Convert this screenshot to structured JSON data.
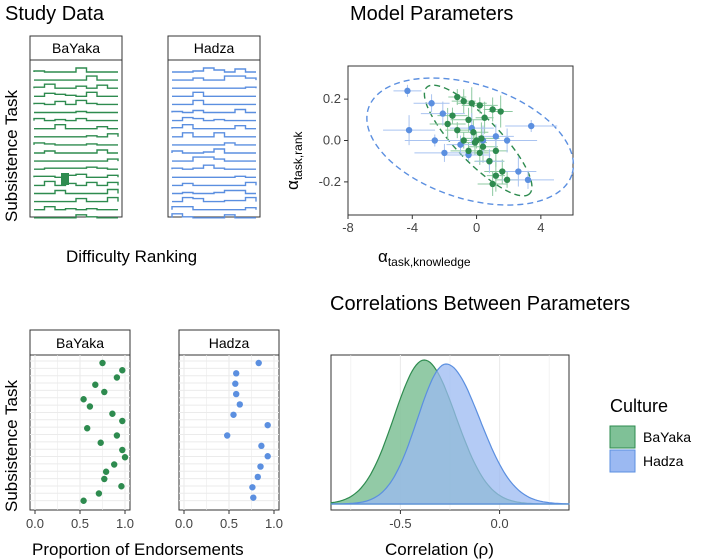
{
  "colors": {
    "bayaka": "#2e8b4f",
    "hadza": "#5b8fe0",
    "bayaka_fill": "#7fc197",
    "hadza_fill": "#9bb9f2",
    "grid": "#e6e6e6",
    "axis": "#333333"
  },
  "study": {
    "title": "Study Data",
    "ylabel": "Subsistence Task",
    "xlabel": "Difficulty Ranking",
    "panels": [
      "BaYaka",
      "Hadza"
    ],
    "n_rows": 19
  },
  "model": {
    "title": "Model Parameters",
    "ylabel_base": "α",
    "ylabel_sub": "task,rank",
    "xlabel_base": "α",
    "xlabel_sub": "task,knowledge",
    "xticks": [
      "-8",
      "-4",
      "0",
      "4"
    ],
    "yticks": [
      "0.2",
      "0.0",
      "-0.2"
    ]
  },
  "endorse": {
    "ylabel": "Subsistence Task",
    "xlabel": "Proportion of Endorsements",
    "xticks": [
      "0.0",
      "0.5",
      "1.0"
    ],
    "panels": [
      "BaYaka",
      "Hadza"
    ]
  },
  "corr": {
    "title": "Correlations Between Parameters",
    "xlabel": "Correlation (ρ)",
    "xticks": [
      "-0.5",
      "0.0"
    ],
    "legend_title": "Culture",
    "legend_items": [
      "BaYaka",
      "Hadza"
    ]
  },
  "chart_data": [
    {
      "type": "bar",
      "title": "Study Data",
      "xlabel": "Difficulty Ranking",
      "ylabel": "Subsistence Task",
      "series": [
        {
          "name": "BaYaka",
          "rows": 19
        },
        {
          "name": "Hadza",
          "rows": 13
        }
      ]
    },
    {
      "type": "scatter",
      "title": "Model Parameters",
      "xlabel": "α task,knowledge",
      "ylabel": "α task,rank",
      "xlim": [
        -8,
        6
      ],
      "ylim": [
        -0.36,
        0.36
      ],
      "series": [
        {
          "name": "BaYaka",
          "points": [
            [
              -1.2,
              0.21
            ],
            [
              -0.8,
              0.19
            ],
            [
              -0.3,
              0.18
            ],
            [
              0.2,
              0.17
            ],
            [
              1.0,
              0.15
            ],
            [
              1.5,
              0.14
            ],
            [
              -1.5,
              0.12
            ],
            [
              -0.5,
              0.1
            ],
            [
              0.5,
              0.11
            ],
            [
              -1.2,
              0.05
            ],
            [
              -0.2,
              0.04
            ],
            [
              0.3,
              0.01
            ],
            [
              -0.8,
              0.0
            ],
            [
              -0.1,
              -0.01
            ],
            [
              0.4,
              -0.03
            ],
            [
              -0.5,
              -0.05
            ],
            [
              0.2,
              -0.06
            ],
            [
              1.2,
              -0.05
            ],
            [
              0.8,
              -0.1
            ],
            [
              1.6,
              -0.15
            ],
            [
              1.2,
              -0.17
            ],
            [
              1.9,
              -0.19
            ],
            [
              1.0,
              -0.21
            ],
            [
              -1.8,
              0.08
            ],
            [
              0.0,
              0.0
            ]
          ]
        },
        {
          "name": "Hadza",
          "points": [
            [
              -4.3,
              0.24
            ],
            [
              -2.8,
              0.18
            ],
            [
              -2.1,
              0.13
            ],
            [
              -4.2,
              0.05
            ],
            [
              -2.6,
              0.0
            ],
            [
              -1.0,
              -0.02
            ],
            [
              1.2,
              0.02
            ],
            [
              -0.3,
              0.06
            ],
            [
              3.4,
              0.07
            ],
            [
              -2.0,
              -0.06
            ],
            [
              0.8,
              -0.1
            ],
            [
              2.6,
              -0.15
            ],
            [
              -0.5,
              -0.07
            ],
            [
              3.2,
              -0.19
            ],
            [
              1.9,
              0.0
            ],
            [
              0.4,
              0.0
            ]
          ]
        }
      ]
    },
    {
      "type": "scatter",
      "xlabel": "Proportion of Endorsements",
      "ylabel": "Subsistence Task",
      "xlim": [
        0,
        1
      ],
      "series": [
        {
          "name": "BaYaka",
          "values": [
            0.75,
            0.97,
            0.91,
            0.67,
            0.77,
            0.54,
            0.61,
            0.86,
            0.97,
            0.58,
            0.91,
            0.73,
            0.97,
            1.0,
            0.88,
            0.79,
            0.77,
            0.96,
            0.71,
            0.54
          ]
        },
        {
          "name": "Hadza",
          "values": [
            0.83,
            0.58,
            0.57,
            0.58,
            0.62,
            0.55,
            0.93,
            0.48,
            0.86,
            0.93,
            0.85,
            0.82,
            0.76,
            0.77
          ]
        }
      ]
    },
    {
      "type": "area",
      "title": "Correlations Between Parameters",
      "xlabel": "Correlation (ρ)",
      "xlim": [
        -0.85,
        0.35
      ],
      "series": [
        {
          "name": "BaYaka",
          "mode": -0.38,
          "sd": 0.16
        },
        {
          "name": "Hadza",
          "mode": -0.27,
          "sd": 0.17
        }
      ]
    }
  ]
}
